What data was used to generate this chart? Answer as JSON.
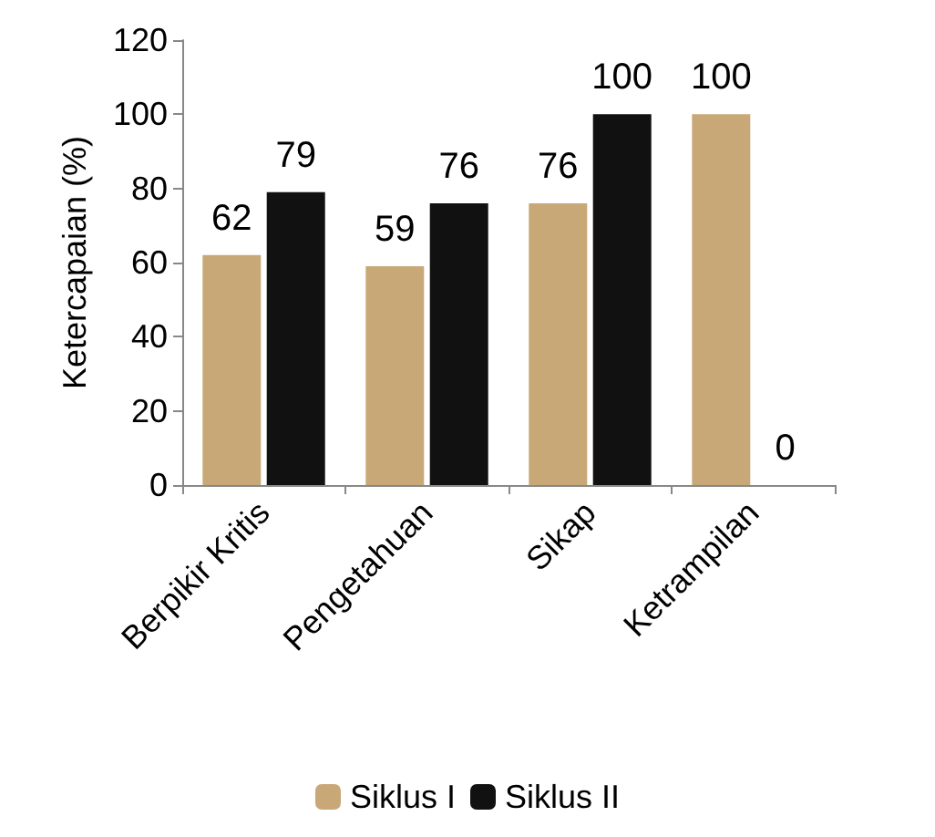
{
  "chart_data": {
    "type": "bar",
    "ylabel": "Ketercapaian (%)",
    "categories": [
      "Berpikir Kritis",
      "Pengetahuan",
      "Sikap",
      "Ketrampilan"
    ],
    "series": [
      {
        "name": "Siklus I",
        "color": "#c9a878",
        "values": [
          62,
          59,
          76,
          100
        ]
      },
      {
        "name": "Siklus II",
        "color": "#111111",
        "values": [
          79,
          76,
          100,
          0
        ]
      }
    ],
    "ylim": [
      0,
      120
    ],
    "yticks": [
      0,
      20,
      40,
      60,
      80,
      100,
      120
    ],
    "grid": false,
    "legend": "bottom",
    "data_labels": true
  }
}
